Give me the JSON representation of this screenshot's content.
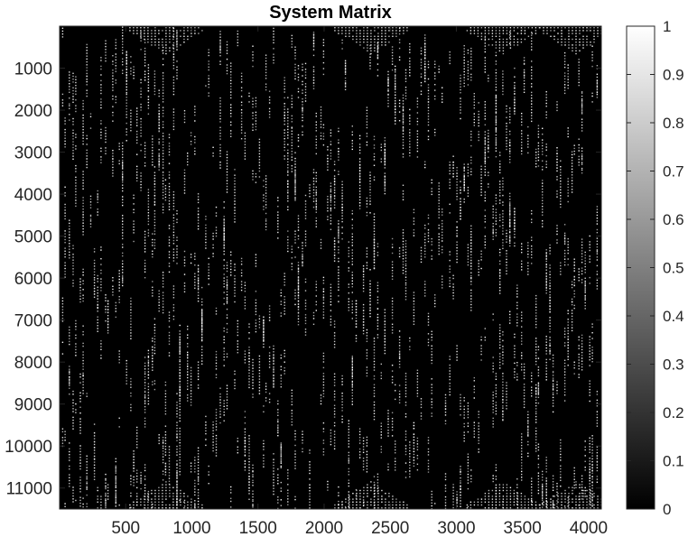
{
  "chart_data": {
    "type": "heatmap",
    "title": "System Matrix",
    "xlabel": "",
    "ylabel": "",
    "colormap": "gray",
    "background_value": 0,
    "xlim": [
      0,
      4096
    ],
    "ylim": [
      0,
      11500
    ],
    "y_reversed": true,
    "x_ticks": [
      500,
      1000,
      1500,
      2000,
      2500,
      3000,
      3500,
      4000
    ],
    "y_ticks": [
      1000,
      2000,
      3000,
      4000,
      5000,
      6000,
      7000,
      8000,
      9000,
      10000,
      11000
    ],
    "colorbar": {
      "range": [
        0,
        1
      ],
      "ticks": [
        0,
        0.1,
        0.2,
        0.3,
        0.4,
        0.5,
        0.6,
        0.7,
        0.8,
        0.9,
        1
      ],
      "tick_labels": [
        "0",
        "0.1",
        "0.2",
        "0.3",
        "0.4",
        "0.5",
        "0.6",
        "0.7",
        "0.8",
        "0.9",
        "1"
      ]
    },
    "description_values": "sparse matrix: mostly 0 with scattered non-zero entries near 1"
  },
  "colors": {
    "background": "#000000",
    "nonzero": "#ffffff",
    "axis": "#262626"
  }
}
